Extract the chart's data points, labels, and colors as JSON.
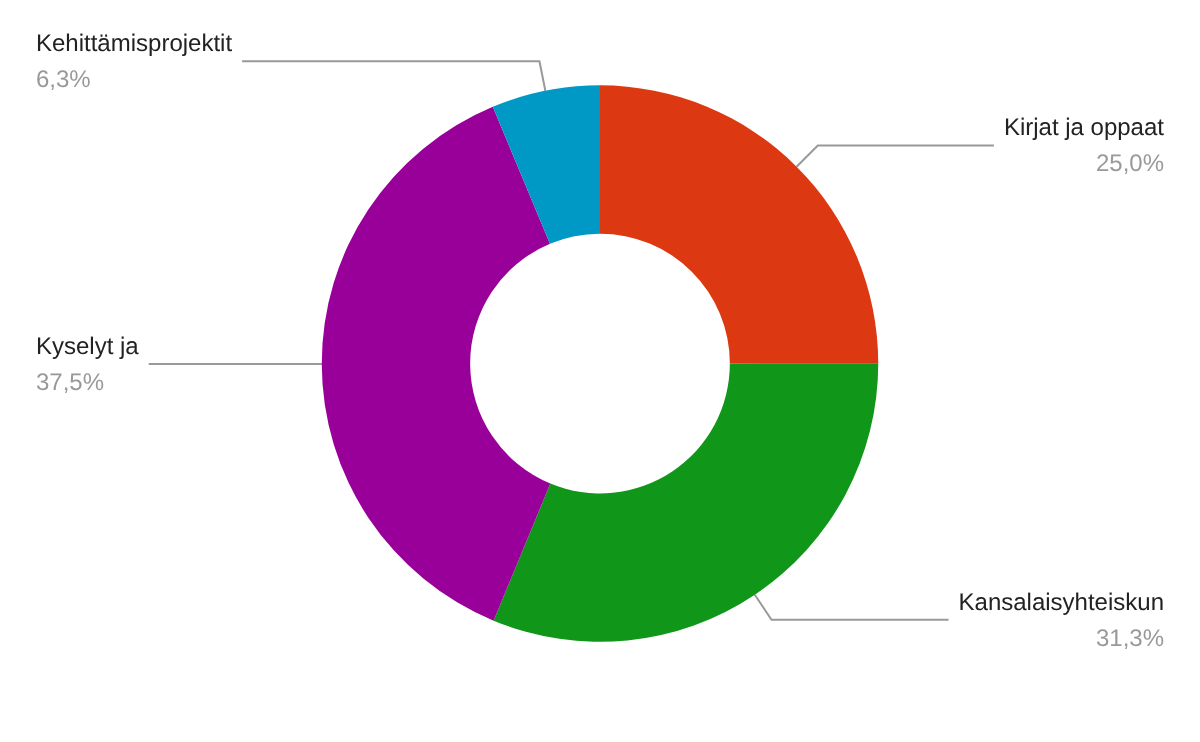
{
  "chart_data": {
    "type": "donut",
    "categories": [
      "Kirjat ja oppaat",
      "Kansalaisyhteiskun",
      "Kyselyt ja",
      "Kehittämisprojektit"
    ],
    "values": [
      25.0,
      31.3,
      37.5,
      6.3
    ],
    "value_labels": [
      "25,0%",
      "31,3%",
      "37,5%",
      "6,3%"
    ],
    "colors": [
      "#dc3912",
      "#109618",
      "#990099",
      "#0099c6"
    ],
    "legend": false
  }
}
